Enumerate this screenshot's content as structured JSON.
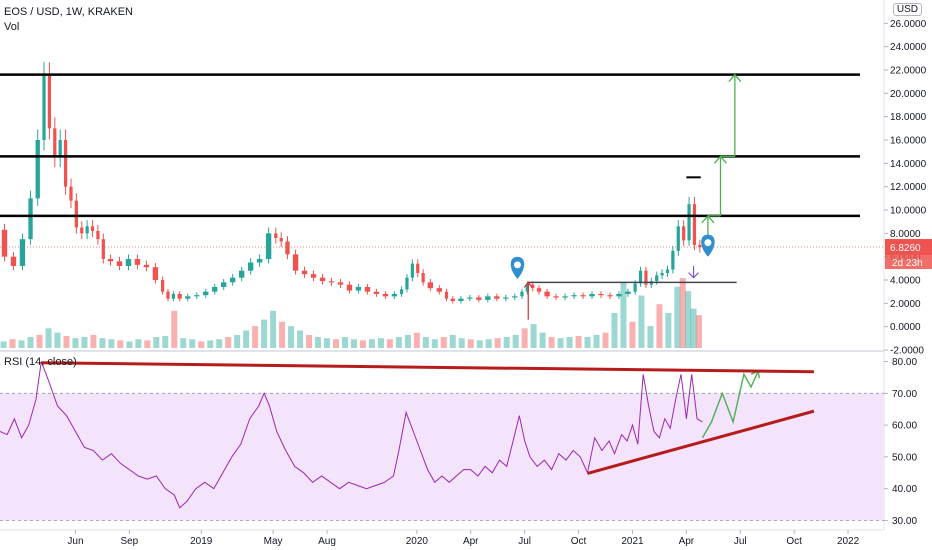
{
  "header": {
    "symbol_line": "EOS / USD, 1W, KRAKEN",
    "volume_label": "Vol",
    "currency_badge": "USD",
    "rsi_label": "RSI (14, close)"
  },
  "price_tag": {
    "value": "6.8260",
    "countdown": "2d 23h",
    "color": "#ef5350"
  },
  "colors": {
    "up": "#26a69a",
    "down": "#ef5350",
    "level_line": "#000000",
    "arrow_green": "#4caf50",
    "rsi_line": "#9c27b0",
    "rsi_band": "#f3e3fb",
    "trendline_red": "#b71c1c",
    "marker_blue": "#2f8fcf"
  },
  "chart_data": [
    {
      "type": "candlestick",
      "title": "EOS / USD, 1W, KRAKEN",
      "x_tick_labels": [
        "Jun",
        "Sep",
        "2019",
        "May",
        "Aug",
        "2020",
        "Apr",
        "Jul",
        "Oct",
        "2021",
        "Apr",
        "Jul",
        "Oct",
        "2022"
      ],
      "x_tick_positions_months": [
        2,
        5,
        9,
        13,
        16,
        21,
        24,
        27,
        30,
        33,
        36,
        39,
        42,
        45
      ],
      "x_range_months": [
        -2.2,
        47
      ],
      "y_tick_labels": [
        "-2.0000",
        "0.0000",
        "2.0000",
        "4.0000",
        "6.0000",
        "8.0000",
        "10.0000",
        "12.0000",
        "14.0000",
        "16.0000",
        "18.0000",
        "20.0000",
        "22.0000",
        "24.0000",
        "26.0000"
      ],
      "ylim": [
        -2,
        28
      ],
      "last_price": 6.826,
      "horizontal_levels": [
        21.6,
        14.6,
        9.5,
        3.8
      ],
      "price_series": [
        [
          -2.2,
          8.3
        ],
        [
          -1.7,
          6.0
        ],
        [
          -1.2,
          5.2
        ],
        [
          -0.7,
          7.5
        ],
        [
          -0.3,
          11.0
        ],
        [
          0.1,
          16.0
        ],
        [
          0.4,
          21.5
        ],
        [
          0.7,
          17.0
        ],
        [
          1.0,
          14.5
        ],
        [
          1.3,
          16.0
        ],
        [
          1.6,
          12.0
        ],
        [
          1.9,
          10.8
        ],
        [
          2.2,
          8.5
        ],
        [
          2.5,
          8.0
        ],
        [
          2.8,
          8.6
        ],
        [
          3.1,
          8.2
        ],
        [
          3.4,
          7.5
        ],
        [
          3.7,
          5.8
        ],
        [
          4.2,
          5.6
        ],
        [
          4.7,
          5.2
        ],
        [
          5.2,
          5.8
        ],
        [
          5.7,
          5.3
        ],
        [
          6.2,
          5.1
        ],
        [
          6.7,
          4.0
        ],
        [
          7.0,
          3.0
        ],
        [
          7.3,
          2.4
        ],
        [
          7.6,
          2.8
        ],
        [
          8.0,
          2.4
        ],
        [
          8.5,
          2.6
        ],
        [
          9.0,
          2.7
        ],
        [
          9.5,
          3.0
        ],
        [
          10.0,
          3.4
        ],
        [
          10.5,
          3.8
        ],
        [
          11.0,
          4.2
        ],
        [
          11.5,
          4.8
        ],
        [
          12.0,
          5.5
        ],
        [
          12.5,
          5.8
        ],
        [
          13.0,
          8.0
        ],
        [
          13.3,
          7.6
        ],
        [
          13.6,
          7.3
        ],
        [
          14.0,
          6.2
        ],
        [
          14.5,
          4.8
        ],
        [
          15.0,
          4.5
        ],
        [
          15.5,
          4.2
        ],
        [
          16.0,
          3.9
        ],
        [
          16.5,
          3.8
        ],
        [
          17.0,
          3.6
        ],
        [
          17.5,
          3.1
        ],
        [
          18.0,
          3.4
        ],
        [
          18.5,
          3.0
        ],
        [
          19.0,
          2.8
        ],
        [
          19.5,
          2.6
        ],
        [
          20.0,
          2.8
        ],
        [
          20.3,
          3.2
        ],
        [
          20.6,
          4.2
        ],
        [
          20.9,
          5.4
        ],
        [
          21.2,
          4.6
        ],
        [
          21.5,
          3.8
        ],
        [
          22.0,
          3.3
        ],
        [
          22.5,
          3.0
        ],
        [
          22.8,
          2.4
        ],
        [
          23.2,
          2.2
        ],
        [
          23.7,
          2.4
        ],
        [
          24.2,
          2.5
        ],
        [
          24.7,
          2.3
        ],
        [
          25.2,
          2.6
        ],
        [
          25.7,
          2.4
        ],
        [
          26.2,
          2.5
        ],
        [
          26.7,
          2.6
        ],
        [
          27.0,
          3.0
        ],
        [
          27.3,
          3.6
        ],
        [
          27.6,
          3.3
        ],
        [
          28.0,
          3.0
        ],
        [
          28.5,
          2.6
        ],
        [
          29.0,
          2.5
        ],
        [
          29.5,
          2.6
        ],
        [
          30.0,
          2.7
        ],
        [
          30.5,
          2.6
        ],
        [
          31.0,
          2.8
        ],
        [
          31.5,
          2.7
        ],
        [
          32.0,
          2.6
        ],
        [
          32.5,
          2.8
        ],
        [
          33.0,
          3.0
        ],
        [
          33.3,
          3.7
        ],
        [
          33.6,
          4.8
        ],
        [
          33.9,
          3.6
        ],
        [
          34.2,
          3.9
        ],
        [
          34.5,
          4.4
        ],
        [
          34.8,
          4.6
        ],
        [
          35.1,
          4.9
        ],
        [
          35.4,
          6.5
        ],
        [
          35.7,
          8.6
        ],
        [
          36.0,
          7.4
        ],
        [
          36.3,
          10.5
        ],
        [
          36.6,
          7.0
        ],
        [
          36.9,
          6.8
        ]
      ],
      "volume_series": [
        [
          -2.0,
          0.3
        ],
        [
          -1.5,
          0.4
        ],
        [
          -1.0,
          0.35
        ],
        [
          -0.5,
          0.5
        ],
        [
          0.0,
          0.6
        ],
        [
          0.5,
          0.9
        ],
        [
          1.0,
          0.7
        ],
        [
          1.5,
          0.55
        ],
        [
          2.0,
          0.45
        ],
        [
          2.5,
          0.5
        ],
        [
          3.0,
          0.6
        ],
        [
          3.5,
          0.45
        ],
        [
          4.0,
          0.4
        ],
        [
          4.5,
          0.35
        ],
        [
          5.0,
          0.3
        ],
        [
          5.5,
          0.4
        ],
        [
          6.0,
          0.35
        ],
        [
          6.5,
          0.5
        ],
        [
          7.0,
          0.55
        ],
        [
          7.5,
          1.7
        ],
        [
          8.0,
          0.45
        ],
        [
          8.5,
          0.4
        ],
        [
          9.0,
          0.3
        ],
        [
          9.5,
          0.35
        ],
        [
          10.0,
          0.4
        ],
        [
          10.5,
          0.5
        ],
        [
          11.0,
          0.6
        ],
        [
          11.5,
          0.8
        ],
        [
          12.0,
          1.0
        ],
        [
          12.5,
          1.3
        ],
        [
          13.0,
          1.7
        ],
        [
          13.5,
          1.2
        ],
        [
          14.0,
          1.0
        ],
        [
          14.5,
          0.8
        ],
        [
          15.0,
          0.6
        ],
        [
          15.5,
          0.5
        ],
        [
          16.0,
          0.45
        ],
        [
          16.5,
          0.4
        ],
        [
          17.0,
          0.5
        ],
        [
          17.5,
          0.4
        ],
        [
          18.0,
          0.35
        ],
        [
          18.5,
          0.4
        ],
        [
          19.0,
          0.45
        ],
        [
          19.5,
          0.4
        ],
        [
          20.0,
          0.5
        ],
        [
          20.5,
          0.6
        ],
        [
          21.0,
          0.7
        ],
        [
          21.5,
          0.5
        ],
        [
          22.0,
          0.4
        ],
        [
          22.5,
          0.5
        ],
        [
          23.0,
          0.6
        ],
        [
          23.5,
          0.45
        ],
        [
          24.0,
          0.4
        ],
        [
          24.5,
          0.35
        ],
        [
          25.0,
          0.4
        ],
        [
          25.5,
          0.45
        ],
        [
          26.0,
          0.5
        ],
        [
          26.5,
          0.6
        ],
        [
          27.0,
          0.9
        ],
        [
          27.5,
          1.1
        ],
        [
          28.0,
          0.7
        ],
        [
          28.5,
          0.5
        ],
        [
          29.0,
          0.45
        ],
        [
          29.5,
          0.5
        ],
        [
          30.0,
          0.55
        ],
        [
          30.5,
          0.5
        ],
        [
          31.0,
          0.6
        ],
        [
          31.5,
          0.7
        ],
        [
          32.0,
          1.6
        ],
        [
          32.5,
          3.0
        ],
        [
          33.0,
          1.2
        ],
        [
          33.5,
          2.4
        ],
        [
          34.0,
          1.0
        ],
        [
          34.5,
          2.0
        ],
        [
          35.0,
          1.6
        ],
        [
          35.5,
          2.8
        ],
        [
          35.8,
          3.2
        ],
        [
          36.1,
          2.6
        ],
        [
          36.4,
          1.8
        ],
        [
          36.7,
          1.5
        ]
      ],
      "annotations": {
        "green_arrows": [
          {
            "x": 37.2,
            "from": 6.6,
            "to": 9.5
          },
          {
            "x": 37.9,
            "from": 9.5,
            "to": 14.6
          },
          {
            "x": 38.7,
            "from": 14.6,
            "to": 21.6
          }
        ],
        "short_black_tick": {
          "x_from": 36.0,
          "x_to": 36.8,
          "y": 12.8
        },
        "red_spike_arrow": {
          "x": 27.2,
          "from": 0.6,
          "to": 3.8
        },
        "location_markers": [
          {
            "x": 26.6,
            "y": 4.1
          },
          {
            "x": 37.2,
            "y": 6.0
          }
        ],
        "purple_arrow_down": {
          "x": 36.4,
          "from": 5.2,
          "to": 4.2
        }
      }
    },
    {
      "type": "line",
      "title": "RSI (14, close)",
      "y_tick_labels": [
        "30.00",
        "40.00",
        "50.00",
        "60.00",
        "70.00",
        "80.00"
      ],
      "ylim": [
        27,
        83
      ],
      "band": [
        30,
        70
      ],
      "series": [
        [
          -2.2,
          58
        ],
        [
          -1.8,
          57
        ],
        [
          -1.4,
          62
        ],
        [
          -1.0,
          56
        ],
        [
          -0.6,
          60
        ],
        [
          -0.2,
          68
        ],
        [
          0.1,
          80
        ],
        [
          0.5,
          74
        ],
        [
          1.0,
          66
        ],
        [
          1.5,
          63
        ],
        [
          2.0,
          58
        ],
        [
          2.5,
          53
        ],
        [
          3.0,
          52
        ],
        [
          3.5,
          49
        ],
        [
          4.0,
          51
        ],
        [
          4.5,
          48
        ],
        [
          5.0,
          46
        ],
        [
          5.5,
          44
        ],
        [
          6.0,
          43
        ],
        [
          6.5,
          44
        ],
        [
          7.0,
          40
        ],
        [
          7.5,
          38
        ],
        [
          7.8,
          34
        ],
        [
          8.2,
          36
        ],
        [
          8.7,
          40
        ],
        [
          9.2,
          42
        ],
        [
          9.7,
          40
        ],
        [
          10.2,
          45
        ],
        [
          10.7,
          50
        ],
        [
          11.2,
          54
        ],
        [
          11.7,
          62
        ],
        [
          12.2,
          66
        ],
        [
          12.5,
          70
        ],
        [
          12.8,
          66
        ],
        [
          13.2,
          58
        ],
        [
          13.7,
          52
        ],
        [
          14.2,
          47
        ],
        [
          14.7,
          45
        ],
        [
          15.2,
          42
        ],
        [
          15.7,
          44
        ],
        [
          16.2,
          42
        ],
        [
          16.7,
          40
        ],
        [
          17.2,
          42
        ],
        [
          17.7,
          41
        ],
        [
          18.2,
          40
        ],
        [
          18.7,
          41
        ],
        [
          19.2,
          42
        ],
        [
          19.7,
          44
        ],
        [
          20.0,
          52
        ],
        [
          20.4,
          64
        ],
        [
          20.8,
          58
        ],
        [
          21.2,
          52
        ],
        [
          21.6,
          46
        ],
        [
          22.0,
          42
        ],
        [
          22.4,
          44
        ],
        [
          22.8,
          42
        ],
        [
          23.2,
          44
        ],
        [
          23.6,
          46
        ],
        [
          24.0,
          46
        ],
        [
          24.4,
          44
        ],
        [
          24.8,
          47
        ],
        [
          25.2,
          45
        ],
        [
          25.6,
          49
        ],
        [
          26.0,
          47
        ],
        [
          26.4,
          56
        ],
        [
          26.7,
          63
        ],
        [
          27.0,
          55
        ],
        [
          27.3,
          50
        ],
        [
          27.7,
          47
        ],
        [
          28.1,
          49
        ],
        [
          28.5,
          46
        ],
        [
          28.9,
          51
        ],
        [
          29.3,
          49
        ],
        [
          29.7,
          52
        ],
        [
          30.1,
          50
        ],
        [
          30.5,
          45
        ],
        [
          30.9,
          56
        ],
        [
          31.3,
          52
        ],
        [
          31.7,
          55
        ],
        [
          32.0,
          51
        ],
        [
          32.4,
          57
        ],
        [
          32.7,
          55
        ],
        [
          33.0,
          60
        ],
        [
          33.3,
          54
        ],
        [
          33.6,
          76
        ],
        [
          33.9,
          66
        ],
        [
          34.2,
          58
        ],
        [
          34.5,
          56
        ],
        [
          34.8,
          62
        ],
        [
          35.1,
          59
        ],
        [
          35.4,
          68
        ],
        [
          35.7,
          76
        ],
        [
          36.0,
          62
        ],
        [
          36.3,
          76
        ],
        [
          36.6,
          62
        ],
        [
          36.9,
          61
        ]
      ],
      "projection": [
        [
          36.9,
          56
        ],
        [
          37.4,
          61
        ],
        [
          38.0,
          70
        ],
        [
          38.6,
          61
        ],
        [
          39.2,
          76
        ],
        [
          39.6,
          72
        ],
        [
          40.0,
          77
        ]
      ],
      "trendlines": [
        {
          "from": [
            0.1,
            79.6
          ],
          "to": [
            43.1,
            76.8
          ]
        },
        {
          "from": [
            30.5,
            44.8
          ],
          "to": [
            43.1,
            64.4
          ]
        }
      ]
    }
  ]
}
